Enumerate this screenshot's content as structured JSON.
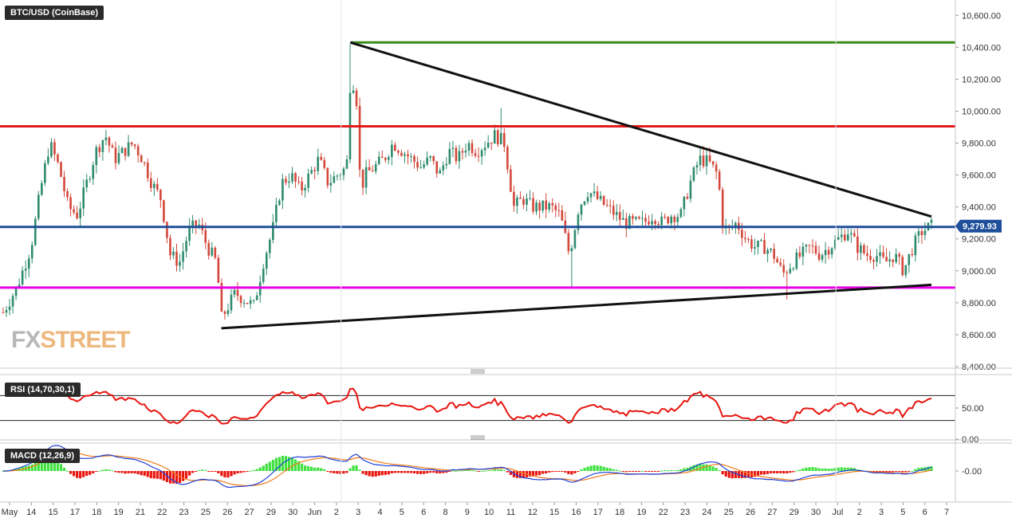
{
  "panels": {
    "price_label": "BTC/USD (CoinBase)",
    "rsi_label": "RSI (14,70,30,1)",
    "macd_label": "MACD (12,26,9)"
  },
  "watermark": {
    "part1": "FX",
    "part2": "STREET"
  },
  "colors": {
    "bull": "#2e8b6e",
    "bear": "#d4473a",
    "resistance_red": "#e41a1c",
    "green_line": "#3a8c1a",
    "blue_line": "#1f4e9a",
    "magenta_line": "#e600e6",
    "trend_black": "#111111",
    "rsi": "#e8150f",
    "macd_line": "#1f3fd6",
    "signal_line": "#f07c1a",
    "hist_pos": "#3fe03f",
    "hist_neg": "#e8150f",
    "price_tag_bg": "#1f4e9a"
  },
  "chart_data": [
    {
      "type": "candlestick",
      "title": "BTC/USD (CoinBase)",
      "ylim": [
        8400,
        10650
      ],
      "y_ticks": [
        "10,600.00",
        "10,400.00",
        "10,200.00",
        "10,000.00",
        "9,800.00",
        "9,600.00",
        "9,400.00",
        "9,200.00",
        "9,000.00",
        "8,800.00",
        "8,600.00",
        "8,400.00"
      ],
      "x_ticks": [
        "May",
        "14",
        "15",
        "17",
        "18",
        "19",
        "21",
        "22",
        "23",
        "25",
        "26",
        "27",
        "29",
        "30",
        "Jun",
        "2",
        "3",
        "4",
        "5",
        "6",
        "8",
        "9",
        "10",
        "11",
        "12",
        "15",
        "16",
        "17",
        "18",
        "19",
        "22",
        "23",
        "24",
        "25",
        "26",
        "27",
        "29",
        "30",
        "Jul",
        "2",
        "3",
        "5",
        "6",
        "7"
      ],
      "last_price": "9,279.93",
      "horizontal_levels": [
        {
          "name": "green",
          "value": 10430
        },
        {
          "name": "red",
          "value": 9905
        },
        {
          "name": "blue",
          "value": 9275
        },
        {
          "name": "magenta",
          "value": 8895
        }
      ],
      "trendlines": [
        {
          "name": "descending",
          "from": {
            "t": 0.374,
            "y": 10430
          },
          "to": {
            "t": 1.0,
            "y": 9340
          }
        },
        {
          "name": "ascending",
          "from": {
            "t": 0.235,
            "y": 8640
          },
          "to": {
            "t": 1.0,
            "y": 8912
          }
        }
      ],
      "close_path": [
        [
          0,
          8740
        ],
        [
          0.015,
          8900
        ],
        [
          0.03,
          9150
        ],
        [
          0.04,
          9500
        ],
        [
          0.05,
          9800
        ],
        [
          0.06,
          9650
        ],
        [
          0.07,
          9400
        ],
        [
          0.08,
          9350
        ],
        [
          0.09,
          9550
        ],
        [
          0.1,
          9750
        ],
        [
          0.11,
          9850
        ],
        [
          0.12,
          9700
        ],
        [
          0.13,
          9750
        ],
        [
          0.14,
          9800
        ],
        [
          0.15,
          9700
        ],
        [
          0.16,
          9550
        ],
        [
          0.17,
          9450
        ],
        [
          0.18,
          9100
        ],
        [
          0.19,
          9050
        ],
        [
          0.2,
          9250
        ],
        [
          0.21,
          9300
        ],
        [
          0.22,
          9150
        ],
        [
          0.23,
          9050
        ],
        [
          0.235,
          8700
        ],
        [
          0.25,
          8860
        ],
        [
          0.26,
          8820
        ],
        [
          0.27,
          8780
        ],
        [
          0.28,
          9050
        ],
        [
          0.29,
          9250
        ],
        [
          0.3,
          9550
        ],
        [
          0.31,
          9600
        ],
        [
          0.32,
          9500
        ],
        [
          0.33,
          9600
        ],
        [
          0.34,
          9700
        ],
        [
          0.35,
          9550
        ],
        [
          0.36,
          9600
        ],
        [
          0.37,
          9650
        ],
        [
          0.374,
          10200
        ],
        [
          0.38,
          10150
        ],
        [
          0.385,
          9500
        ],
        [
          0.39,
          9600
        ],
        [
          0.4,
          9650
        ],
        [
          0.41,
          9700
        ],
        [
          0.42,
          9800
        ],
        [
          0.43,
          9750
        ],
        [
          0.44,
          9700
        ],
        [
          0.45,
          9650
        ],
        [
          0.46,
          9700
        ],
        [
          0.47,
          9600
        ],
        [
          0.48,
          9750
        ],
        [
          0.49,
          9700
        ],
        [
          0.5,
          9800
        ],
        [
          0.51,
          9750
        ],
        [
          0.52,
          9800
        ],
        [
          0.53,
          9850
        ],
        [
          0.54,
          9800
        ],
        [
          0.545,
          9600
        ],
        [
          0.55,
          9400
        ],
        [
          0.56,
          9450
        ],
        [
          0.57,
          9400
        ],
        [
          0.58,
          9400
        ],
        [
          0.59,
          9400
        ],
        [
          0.6,
          9350
        ],
        [
          0.61,
          9100
        ],
        [
          0.62,
          9400
        ],
        [
          0.63,
          9500
        ],
        [
          0.64,
          9450
        ],
        [
          0.65,
          9400
        ],
        [
          0.66,
          9350
        ],
        [
          0.67,
          9300
        ],
        [
          0.68,
          9300
        ],
        [
          0.69,
          9300
        ],
        [
          0.7,
          9350
        ],
        [
          0.71,
          9300
        ],
        [
          0.72,
          9350
        ],
        [
          0.73,
          9350
        ],
        [
          0.74,
          9550
        ],
        [
          0.75,
          9700
        ],
        [
          0.76,
          9680
        ],
        [
          0.77,
          9600
        ],
        [
          0.775,
          9300
        ],
        [
          0.78,
          9250
        ],
        [
          0.79,
          9300
        ],
        [
          0.8,
          9200
        ],
        [
          0.81,
          9150
        ],
        [
          0.82,
          9150
        ],
        [
          0.83,
          9100
        ],
        [
          0.84,
          8980
        ],
        [
          0.85,
          9050
        ],
        [
          0.86,
          9100
        ],
        [
          0.87,
          9150
        ],
        [
          0.88,
          9100
        ],
        [
          0.89,
          9150
        ],
        [
          0.9,
          9200
        ],
        [
          0.91,
          9250
        ],
        [
          0.92,
          9150
        ],
        [
          0.93,
          9100
        ],
        [
          0.94,
          9100
        ],
        [
          0.95,
          9050
        ],
        [
          0.96,
          9100
        ],
        [
          0.97,
          9000
        ],
        [
          0.98,
          9150
        ],
        [
          0.99,
          9250
        ],
        [
          1.0,
          9280
        ]
      ]
    },
    {
      "type": "line",
      "title": "RSI (14,70,30,1)",
      "y_ticks": [
        "50.00",
        "0.00"
      ],
      "ylim": [
        0,
        100
      ],
      "overbought": 70,
      "oversold": 30
    },
    {
      "type": "line+histogram",
      "title": "MACD (12,26,9)",
      "y_ticks": [
        "-0.00"
      ],
      "series": [
        {
          "name": "MACD"
        },
        {
          "name": "Signal"
        },
        {
          "name": "Histogram"
        }
      ]
    }
  ]
}
